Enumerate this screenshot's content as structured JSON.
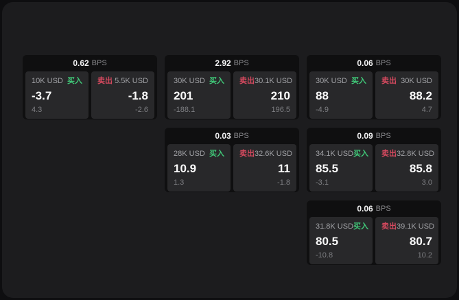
{
  "colors": {
    "buy": "#40c878",
    "sell": "#d4495e"
  },
  "cards": [
    {
      "bps": "0.62",
      "unit": "BPS",
      "buy": {
        "amount": "10K USD",
        "tag": "买入",
        "value": "-3.7",
        "sub": "4.3"
      },
      "sell": {
        "tag": "卖出",
        "amount": "5.5K USD",
        "value": "-1.8",
        "sub": "-2.6"
      }
    },
    {
      "bps": "2.92",
      "unit": "BPS",
      "buy": {
        "amount": "30K USD",
        "tag": "买入",
        "value": "201",
        "sub": "-188.1"
      },
      "sell": {
        "tag": "卖出",
        "amount": "30.1K USD",
        "value": "210",
        "sub": "196.5"
      }
    },
    {
      "bps": "0.06",
      "unit": "BPS",
      "buy": {
        "amount": "30K USD",
        "tag": "买入",
        "value": "88",
        "sub": "-4.9"
      },
      "sell": {
        "tag": "卖出",
        "amount": "30K USD",
        "value": "88.2",
        "sub": "4.7"
      }
    },
    {
      "bps": "0.03",
      "unit": "BPS",
      "buy": {
        "amount": "28K USD",
        "tag": "买入",
        "value": "10.9",
        "sub": "1.3"
      },
      "sell": {
        "tag": "卖出",
        "amount": "32.6K USD",
        "value": "11",
        "sub": "-1.8"
      }
    },
    {
      "bps": "0.09",
      "unit": "BPS",
      "buy": {
        "amount": "34.1K USD",
        "tag": "买入",
        "value": "85.5",
        "sub": "-3.1"
      },
      "sell": {
        "tag": "卖出",
        "amount": "32.8K USD",
        "value": "85.8",
        "sub": "3.0"
      }
    },
    {
      "bps": "0.06",
      "unit": "BPS",
      "buy": {
        "amount": "31.8K USD",
        "tag": "买入",
        "value": "80.5",
        "sub": "-10.8"
      },
      "sell": {
        "tag": "卖出",
        "amount": "39.1K USD",
        "value": "80.7",
        "sub": "10.2"
      }
    }
  ]
}
